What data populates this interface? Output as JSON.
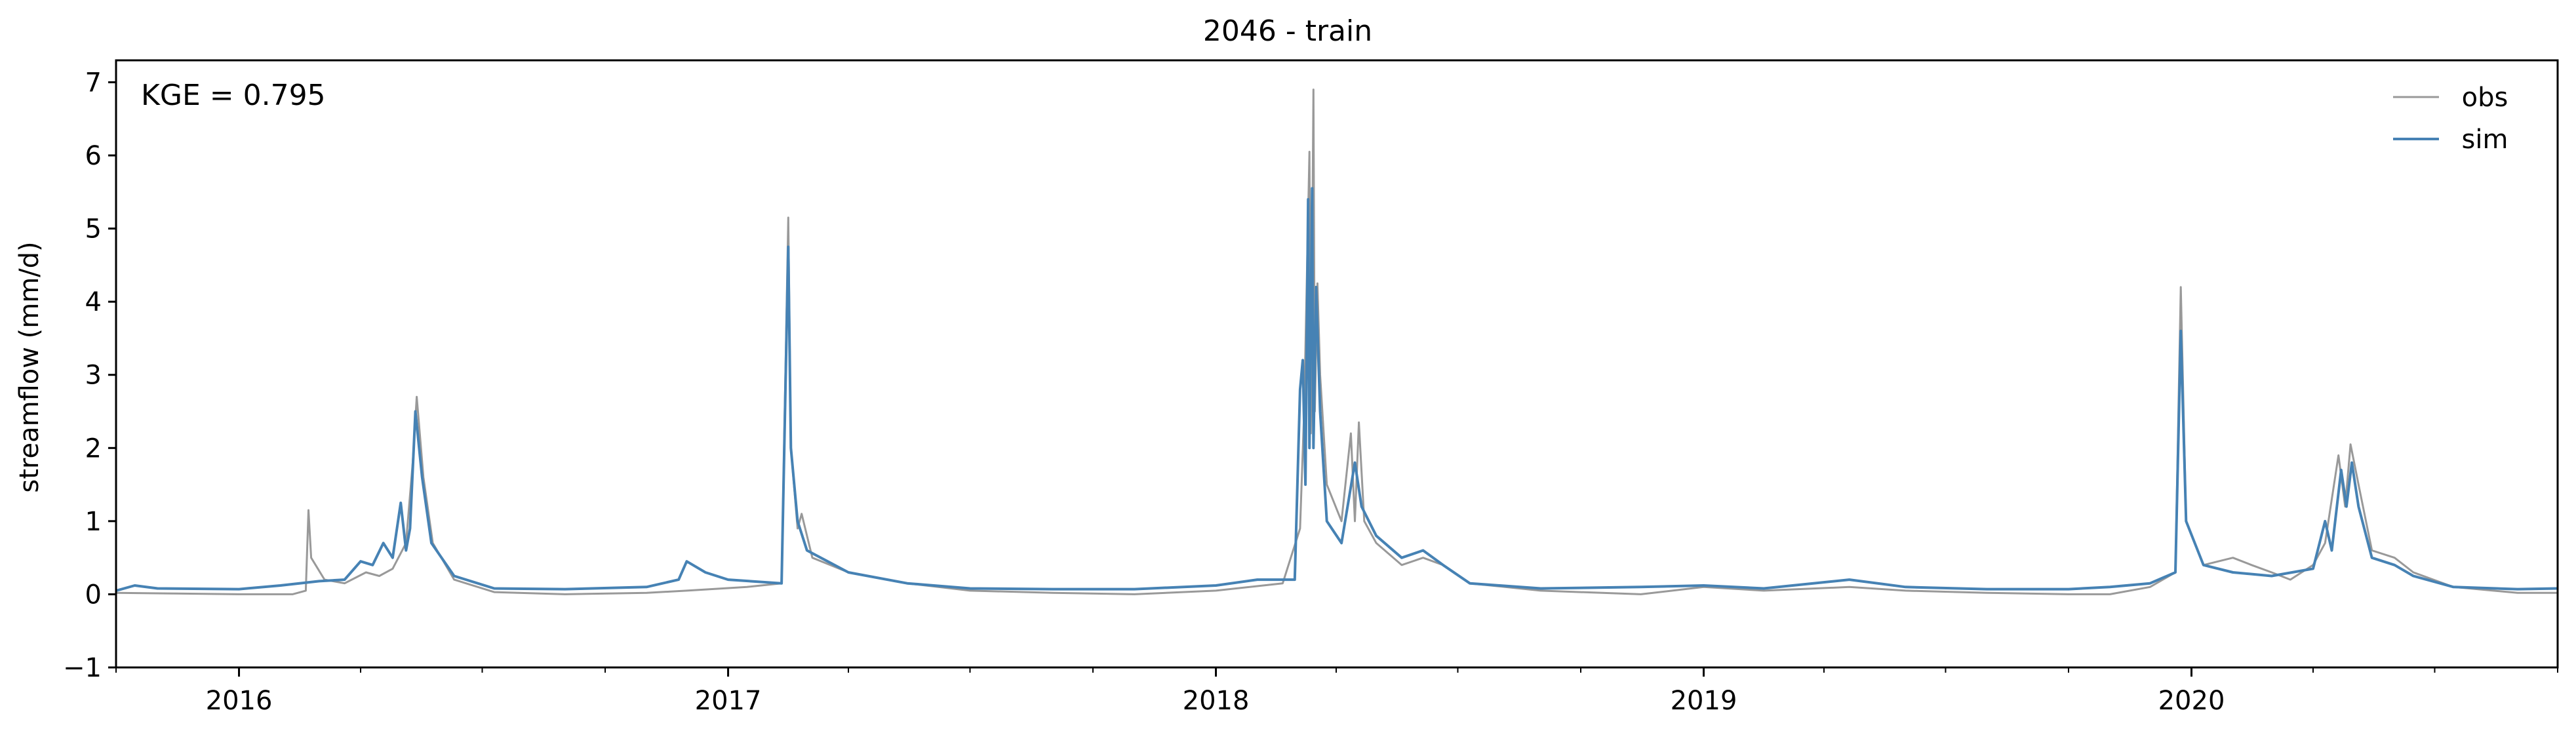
{
  "chart_data": {
    "type": "line",
    "title": "2046 - train",
    "xlabel": "",
    "ylabel": "streamflow (mm/d)",
    "annotation": "KGE = 0.795",
    "xlim": [
      "2015-10-01",
      "2020-10-01"
    ],
    "ylim": [
      -1,
      7.3
    ],
    "yticks": [
      -1,
      0,
      1,
      2,
      3,
      4,
      5,
      6,
      7
    ],
    "ytick_labels": [
      "−1",
      "0",
      "1",
      "2",
      "3",
      "4",
      "5",
      "6",
      "7"
    ],
    "xticks": [
      "2016-01-01",
      "2017-01-01",
      "2018-01-01",
      "2019-01-01",
      "2020-01-01"
    ],
    "xtick_labels": [
      "2016",
      "2017",
      "2018",
      "2019",
      "2020"
    ],
    "grid": false,
    "legend_position": "top-right",
    "colors": {
      "obs": "#999999",
      "sim": "#4682b4"
    },
    "series": [
      {
        "name": "obs",
        "points": [
          [
            "2015-10-01",
            0.02
          ],
          [
            "2015-11-15",
            0.01
          ],
          [
            "2016-01-01",
            0.0
          ],
          [
            "2016-02-10",
            0.0
          ],
          [
            "2016-02-20",
            0.05
          ],
          [
            "2016-02-22",
            1.15
          ],
          [
            "2016-02-24",
            0.5
          ],
          [
            "2016-03-05",
            0.2
          ],
          [
            "2016-03-20",
            0.15
          ],
          [
            "2016-04-05",
            0.3
          ],
          [
            "2016-04-15",
            0.25
          ],
          [
            "2016-04-25",
            0.35
          ],
          [
            "2016-05-05",
            0.7
          ],
          [
            "2016-05-10",
            1.8
          ],
          [
            "2016-05-13",
            2.7
          ],
          [
            "2016-05-18",
            1.6
          ],
          [
            "2016-05-25",
            0.7
          ],
          [
            "2016-06-10",
            0.2
          ],
          [
            "2016-07-10",
            0.03
          ],
          [
            "2016-09-01",
            0.0
          ],
          [
            "2016-11-01",
            0.02
          ],
          [
            "2016-12-01",
            0.05
          ],
          [
            "2017-01-15",
            0.1
          ],
          [
            "2017-02-10",
            0.15
          ],
          [
            "2017-02-15",
            5.15
          ],
          [
            "2017-02-17",
            2.0
          ],
          [
            "2017-02-22",
            0.9
          ],
          [
            "2017-02-25",
            1.1
          ],
          [
            "2017-03-05",
            0.5
          ],
          [
            "2017-04-01",
            0.3
          ],
          [
            "2017-05-15",
            0.15
          ],
          [
            "2017-07-01",
            0.05
          ],
          [
            "2017-09-01",
            0.02
          ],
          [
            "2017-11-01",
            0.0
          ],
          [
            "2018-01-01",
            0.05
          ],
          [
            "2018-02-20",
            0.15
          ],
          [
            "2018-03-05",
            0.9
          ],
          [
            "2018-03-08",
            2.5
          ],
          [
            "2018-03-12",
            6.05
          ],
          [
            "2018-03-13",
            2.2
          ],
          [
            "2018-03-15",
            6.9
          ],
          [
            "2018-03-16",
            2.5
          ],
          [
            "2018-03-18",
            4.25
          ],
          [
            "2018-03-20",
            3.0
          ],
          [
            "2018-03-25",
            1.5
          ],
          [
            "2018-04-05",
            1.0
          ],
          [
            "2018-04-12",
            2.2
          ],
          [
            "2018-04-15",
            1.0
          ],
          [
            "2018-04-18",
            2.35
          ],
          [
            "2018-04-22",
            1.0
          ],
          [
            "2018-05-01",
            0.7
          ],
          [
            "2018-05-20",
            0.4
          ],
          [
            "2018-06-05",
            0.5
          ],
          [
            "2018-06-20",
            0.4
          ],
          [
            "2018-07-10",
            0.15
          ],
          [
            "2018-09-01",
            0.05
          ],
          [
            "2018-11-15",
            0.0
          ],
          [
            "2019-01-01",
            0.1
          ],
          [
            "2019-02-15",
            0.05
          ],
          [
            "2019-04-20",
            0.1
          ],
          [
            "2019-06-01",
            0.05
          ],
          [
            "2019-08-01",
            0.02
          ],
          [
            "2019-10-01",
            0.0
          ],
          [
            "2019-11-01",
            0.0
          ],
          [
            "2019-12-01",
            0.1
          ],
          [
            "2019-12-20",
            0.3
          ],
          [
            "2019-12-24",
            4.2
          ],
          [
            "2019-12-28",
            1.0
          ],
          [
            "2020-01-10",
            0.4
          ],
          [
            "2020-02-01",
            0.5
          ],
          [
            "2020-02-15",
            0.4
          ],
          [
            "2020-03-01",
            0.3
          ],
          [
            "2020-03-15",
            0.2
          ],
          [
            "2020-04-01",
            0.4
          ],
          [
            "2020-04-10",
            0.7
          ],
          [
            "2020-04-20",
            1.9
          ],
          [
            "2020-04-25",
            1.2
          ],
          [
            "2020-04-29",
            2.05
          ],
          [
            "2020-05-05",
            1.5
          ],
          [
            "2020-05-15",
            0.6
          ],
          [
            "2020-06-01",
            0.5
          ],
          [
            "2020-06-15",
            0.3
          ],
          [
            "2020-07-15",
            0.1
          ],
          [
            "2020-09-01",
            0.02
          ],
          [
            "2020-10-01",
            0.02
          ]
        ]
      },
      {
        "name": "sim",
        "points": [
          [
            "2015-10-01",
            0.05
          ],
          [
            "2015-10-15",
            0.12
          ],
          [
            "2015-11-01",
            0.08
          ],
          [
            "2016-01-01",
            0.07
          ],
          [
            "2016-02-01",
            0.12
          ],
          [
            "2016-03-01",
            0.18
          ],
          [
            "2016-03-20",
            0.2
          ],
          [
            "2016-04-01",
            0.45
          ],
          [
            "2016-04-10",
            0.4
          ],
          [
            "2016-04-18",
            0.7
          ],
          [
            "2016-04-25",
            0.5
          ],
          [
            "2016-05-01",
            1.25
          ],
          [
            "2016-05-05",
            0.6
          ],
          [
            "2016-05-08",
            0.9
          ],
          [
            "2016-05-12",
            2.5
          ],
          [
            "2016-05-17",
            1.6
          ],
          [
            "2016-05-24",
            0.7
          ],
          [
            "2016-06-10",
            0.25
          ],
          [
            "2016-07-10",
            0.08
          ],
          [
            "2016-09-01",
            0.07
          ],
          [
            "2016-11-01",
            0.1
          ],
          [
            "2016-11-25",
            0.2
          ],
          [
            "2016-12-01",
            0.45
          ],
          [
            "2016-12-15",
            0.3
          ],
          [
            "2017-01-01",
            0.2
          ],
          [
            "2017-02-10",
            0.15
          ],
          [
            "2017-02-15",
            4.75
          ],
          [
            "2017-02-17",
            2.0
          ],
          [
            "2017-02-22",
            1.0
          ],
          [
            "2017-03-01",
            0.6
          ],
          [
            "2017-04-01",
            0.3
          ],
          [
            "2017-05-15",
            0.15
          ],
          [
            "2017-07-01",
            0.08
          ],
          [
            "2017-09-01",
            0.07
          ],
          [
            "2017-11-01",
            0.07
          ],
          [
            "2018-01-01",
            0.12
          ],
          [
            "2018-02-01",
            0.2
          ],
          [
            "2018-03-01",
            0.2
          ],
          [
            "2018-03-05",
            2.8
          ],
          [
            "2018-03-07",
            3.2
          ],
          [
            "2018-03-09",
            1.5
          ],
          [
            "2018-03-11",
            5.4
          ],
          [
            "2018-03-12",
            2.0
          ],
          [
            "2018-03-14",
            5.55
          ],
          [
            "2018-03-15",
            2.0
          ],
          [
            "2018-03-17",
            4.2
          ],
          [
            "2018-03-20",
            2.5
          ],
          [
            "2018-03-25",
            1.0
          ],
          [
            "2018-04-05",
            0.7
          ],
          [
            "2018-04-15",
            1.8
          ],
          [
            "2018-04-20",
            1.2
          ],
          [
            "2018-05-01",
            0.8
          ],
          [
            "2018-05-20",
            0.5
          ],
          [
            "2018-06-05",
            0.6
          ],
          [
            "2018-06-20",
            0.4
          ],
          [
            "2018-07-10",
            0.15
          ],
          [
            "2018-09-01",
            0.08
          ],
          [
            "2018-11-15",
            0.1
          ],
          [
            "2019-01-01",
            0.12
          ],
          [
            "2019-02-15",
            0.08
          ],
          [
            "2019-04-20",
            0.2
          ],
          [
            "2019-06-01",
            0.1
          ],
          [
            "2019-08-01",
            0.07
          ],
          [
            "2019-10-01",
            0.07
          ],
          [
            "2019-11-01",
            0.1
          ],
          [
            "2019-12-01",
            0.15
          ],
          [
            "2019-12-20",
            0.3
          ],
          [
            "2019-12-24",
            3.6
          ],
          [
            "2019-12-28",
            1.0
          ],
          [
            "2020-01-10",
            0.4
          ],
          [
            "2020-02-01",
            0.3
          ],
          [
            "2020-03-01",
            0.25
          ],
          [
            "2020-04-01",
            0.35
          ],
          [
            "2020-04-10",
            1.0
          ],
          [
            "2020-04-15",
            0.6
          ],
          [
            "2020-04-22",
            1.7
          ],
          [
            "2020-04-26",
            1.2
          ],
          [
            "2020-04-30",
            1.8
          ],
          [
            "2020-05-05",
            1.2
          ],
          [
            "2020-05-15",
            0.5
          ],
          [
            "2020-06-01",
            0.4
          ],
          [
            "2020-06-15",
            0.25
          ],
          [
            "2020-07-15",
            0.1
          ],
          [
            "2020-09-01",
            0.07
          ],
          [
            "2020-10-01",
            0.08
          ]
        ]
      }
    ]
  }
}
